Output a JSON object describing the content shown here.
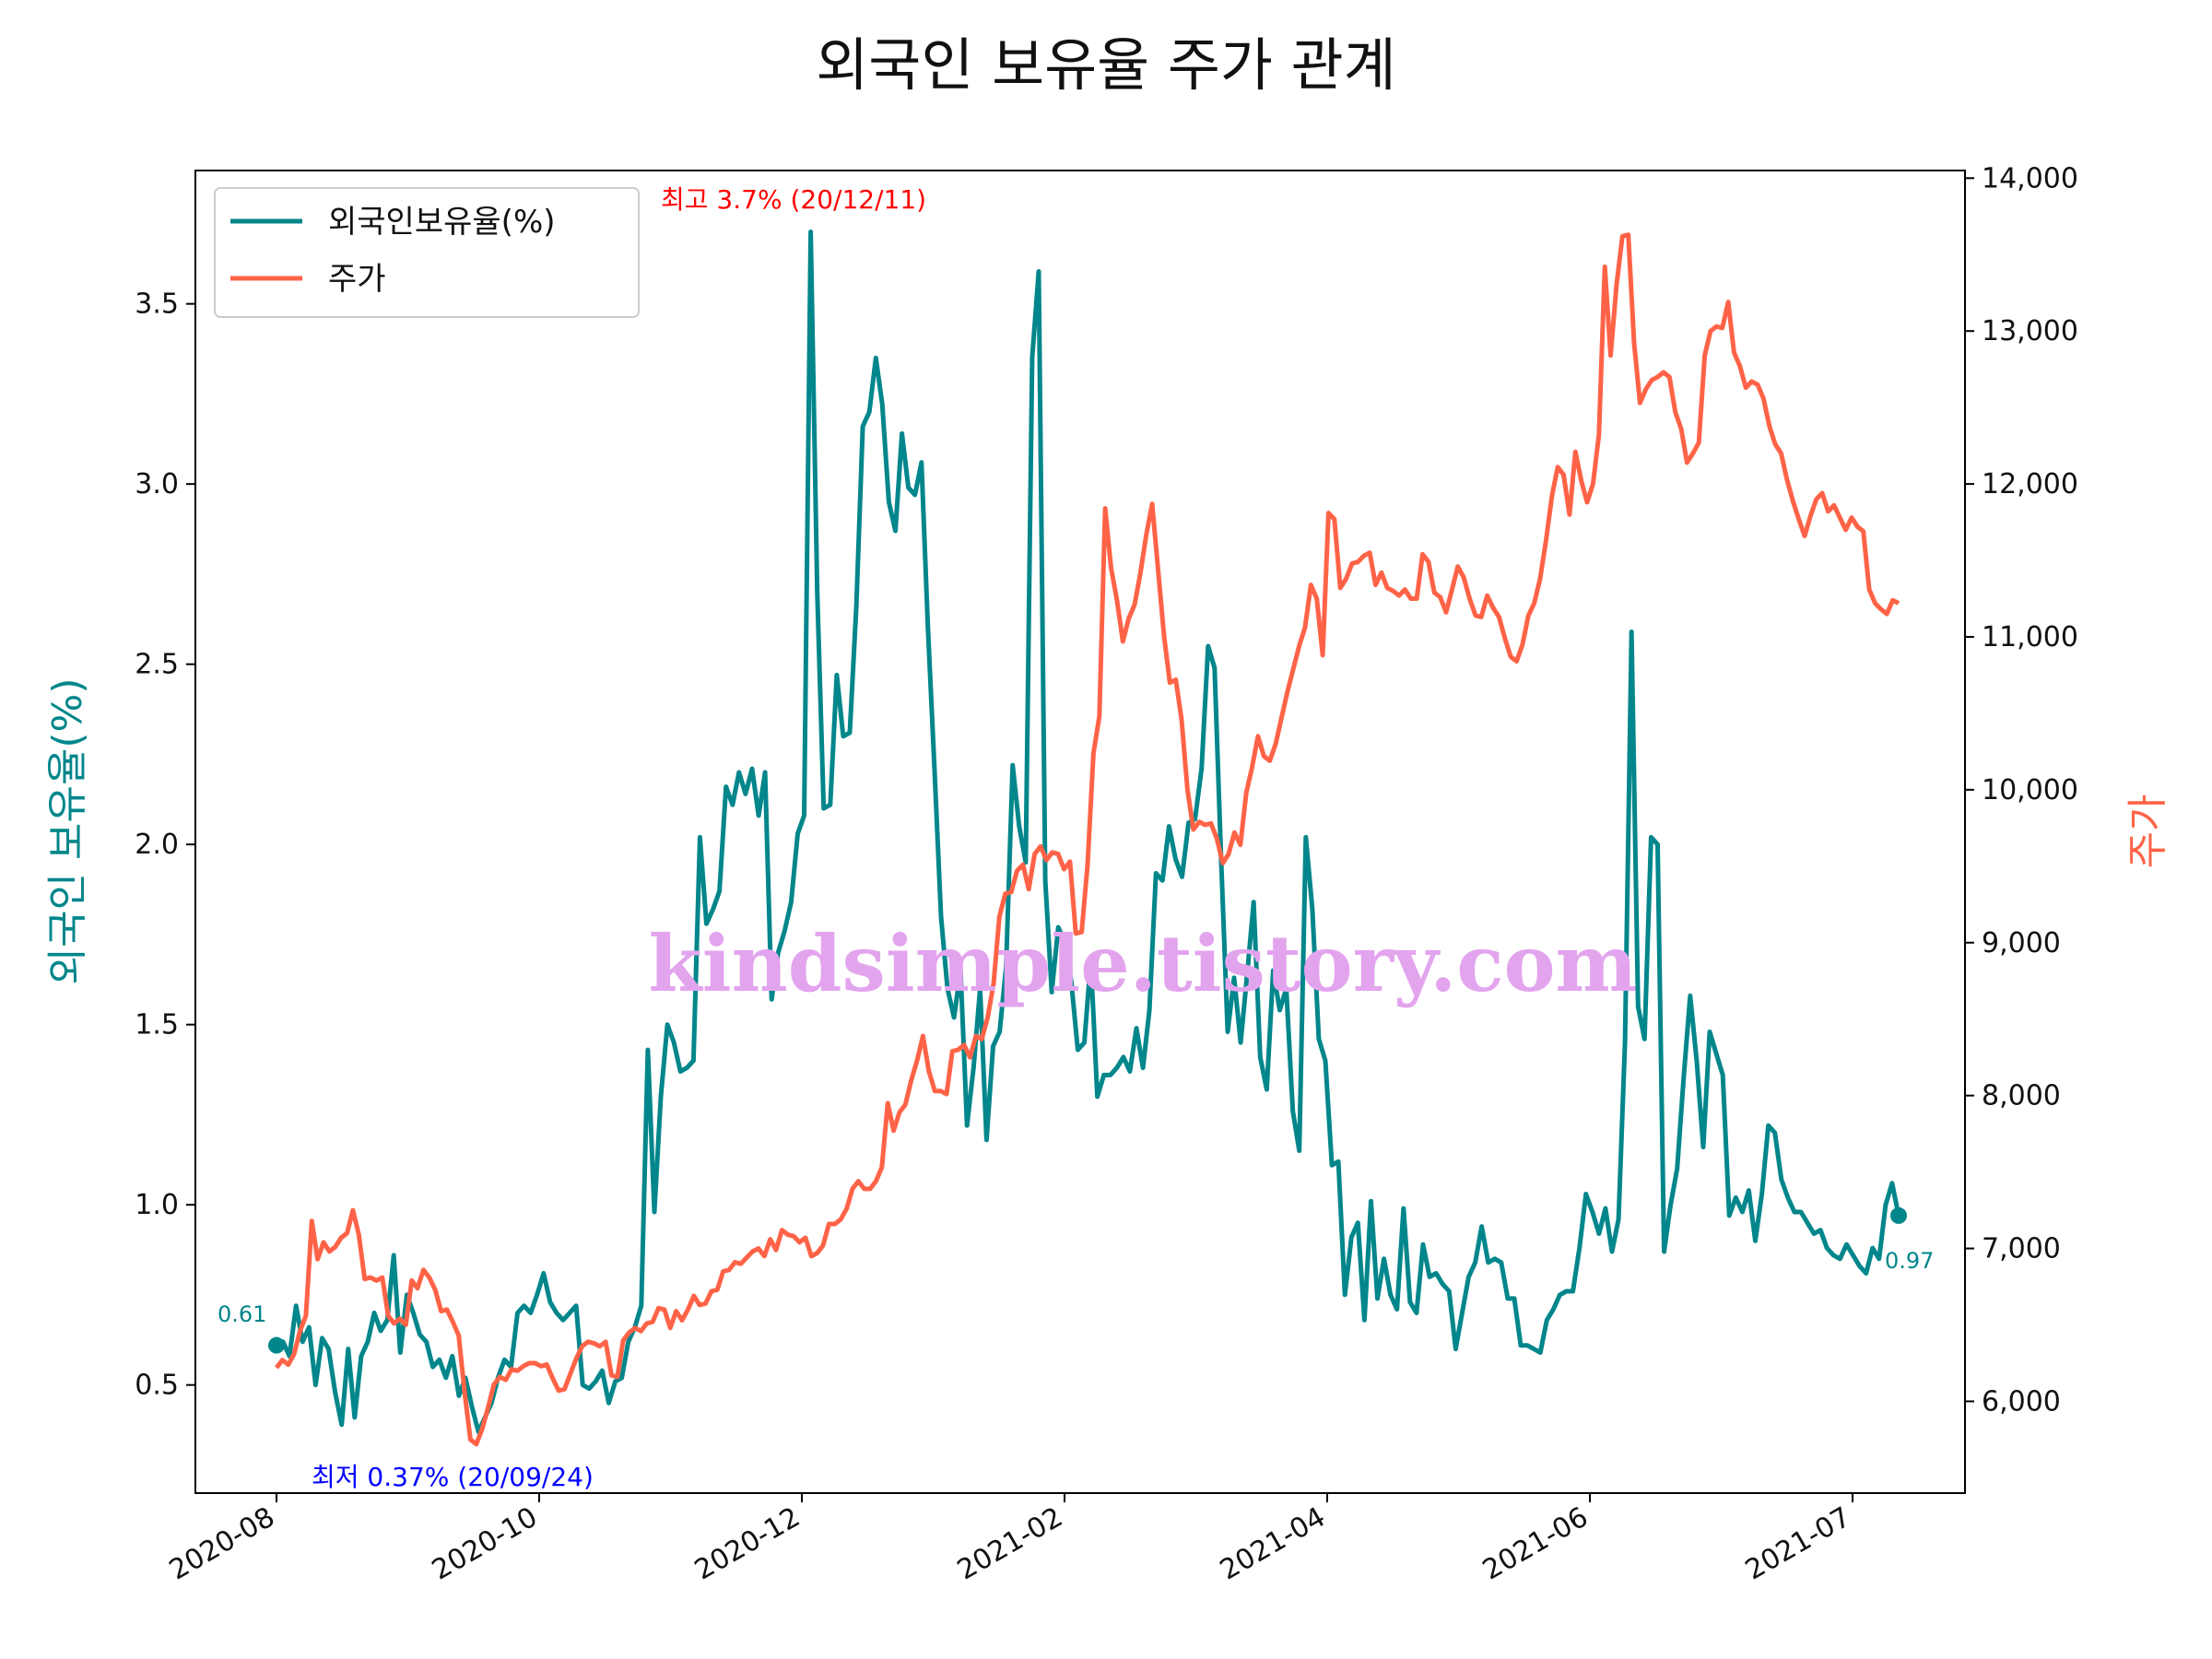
{
  "chart_data": {
    "type": "line",
    "title": "외국인 보유율 주가 관계",
    "ylabel_left": "외국인 보유율(%)",
    "ylabel_right": "주가",
    "xlabel": "",
    "x_ticks": [
      "2020-08",
      "2020-10",
      "2020-12",
      "2021-02",
      "2021-04",
      "2021-06",
      "2021-07"
    ],
    "y_left_range": [
      0.2,
      3.87
    ],
    "y_left_ticks": [
      "0.5",
      "1.0",
      "1.5",
      "2.0",
      "2.5",
      "3.0",
      "3.5"
    ],
    "y_left_tick_values": [
      0.5,
      1.0,
      1.5,
      2.0,
      2.5,
      3.0,
      3.5
    ],
    "y_right_range": [
      5400,
      14050
    ],
    "y_right_ticks": [
      "6,000",
      "7,000",
      "8,000",
      "9,000",
      "10,000",
      "11,000",
      "12,000",
      "13,000",
      "14,000"
    ],
    "y_right_tick_values": [
      6000,
      7000,
      8000,
      9000,
      10000,
      11000,
      12000,
      13000,
      14000
    ],
    "legend": {
      "location": "upper-left",
      "entries": [
        "외국인보유율(%)",
        "주가"
      ]
    },
    "series": [
      {
        "name": "외국인보유율(%)",
        "axis": "left",
        "color": "#00868b",
        "values": [
          0.61,
          0.62,
          0.58,
          0.72,
          0.62,
          0.66,
          0.5,
          0.63,
          0.6,
          0.48,
          0.39,
          0.6,
          0.41,
          0.58,
          0.62,
          0.7,
          0.65,
          0.68,
          0.86,
          0.59,
          0.75,
          0.7,
          0.64,
          0.62,
          0.55,
          0.57,
          0.52,
          0.58,
          0.47,
          0.52,
          0.44,
          0.37,
          0.41,
          0.45,
          0.52,
          0.57,
          0.55,
          0.7,
          0.72,
          0.7,
          0.75,
          0.81,
          0.73,
          0.7,
          0.68,
          0.7,
          0.72,
          0.5,
          0.49,
          0.51,
          0.54,
          0.45,
          0.51,
          0.52,
          0.62,
          0.66,
          0.72,
          1.43,
          0.98,
          1.3,
          1.5,
          1.45,
          1.37,
          1.38,
          1.4,
          2.02,
          1.78,
          1.82,
          1.87,
          2.16,
          2.11,
          2.2,
          2.14,
          2.21,
          2.08,
          2.2,
          1.57,
          1.7,
          1.76,
          1.84,
          2.03,
          2.08,
          3.7,
          2.7,
          2.1,
          2.11,
          2.47,
          2.3,
          2.31,
          2.66,
          3.16,
          3.2,
          3.35,
          3.22,
          2.95,
          2.87,
          3.14,
          2.99,
          2.97,
          3.06,
          2.6,
          2.21,
          1.8,
          1.6,
          1.52,
          1.65,
          1.22,
          1.38,
          1.6,
          1.18,
          1.44,
          1.48,
          1.66,
          2.22,
          2.05,
          1.95,
          3.35,
          3.59,
          1.9,
          1.59,
          1.77,
          1.73,
          1.62,
          1.43,
          1.45,
          1.68,
          1.3,
          1.36,
          1.36,
          1.38,
          1.41,
          1.37,
          1.49,
          1.38,
          1.54,
          1.92,
          1.9,
          2.05,
          1.96,
          1.91,
          2.06,
          2.07,
          2.21,
          2.55,
          2.49,
          1.96,
          1.48,
          1.63,
          1.45,
          1.64,
          1.84,
          1.41,
          1.32,
          1.65,
          1.54,
          1.6,
          1.26,
          1.15,
          2.02,
          1.82,
          1.46,
          1.4,
          1.11,
          1.12,
          0.75,
          0.91,
          0.95,
          0.68,
          1.01,
          0.74,
          0.85,
          0.75,
          0.71,
          0.99,
          0.73,
          0.7,
          0.89,
          0.8,
          0.81,
          0.78,
          0.76,
          0.6,
          0.7,
          0.8,
          0.84,
          0.94,
          0.84,
          0.85,
          0.84,
          0.74,
          0.74,
          0.61,
          0.61,
          0.6,
          0.59,
          0.68,
          0.71,
          0.75,
          0.76,
          0.76,
          0.88,
          1.03,
          0.98,
          0.92,
          0.99,
          0.87,
          0.96,
          1.45,
          2.59,
          1.55,
          1.46,
          2.02,
          2.0,
          0.87,
          1.0,
          1.1,
          1.35,
          1.58,
          1.4,
          1.16,
          1.48,
          1.42,
          1.36,
          0.97,
          1.02,
          0.98,
          1.04,
          0.9,
          1.03,
          1.22,
          1.2,
          1.07,
          1.02,
          0.98,
          0.98,
          0.95,
          0.92,
          0.93,
          0.88,
          0.86,
          0.85,
          0.89,
          0.86,
          0.83,
          0.81,
          0.88,
          0.85,
          1.0,
          1.06,
          0.97
        ]
      },
      {
        "name": "주가",
        "axis": "right",
        "color": "#ff6347",
        "values": [
          6220,
          6270,
          6240,
          6310,
          6460,
          6560,
          7180,
          6930,
          7040,
          6980,
          7010,
          7070,
          7100,
          7250,
          7090,
          6800,
          6810,
          6790,
          6810,
          6560,
          6510,
          6540,
          6500,
          6790,
          6740,
          6860,
          6810,
          6730,
          6590,
          6600,
          6520,
          6430,
          6060,
          5750,
          5720,
          5820,
          5960,
          6110,
          6160,
          6140,
          6210,
          6200,
          6230,
          6250,
          6250,
          6230,
          6240,
          6150,
          6070,
          6080,
          6180,
          6280,
          6360,
          6390,
          6380,
          6360,
          6390,
          6170,
          6160,
          6400,
          6450,
          6480,
          6460,
          6510,
          6520,
          6610,
          6600,
          6480,
          6590,
          6530,
          6600,
          6690,
          6630,
          6640,
          6720,
          6730,
          6850,
          6860,
          6910,
          6900,
          6940,
          6980,
          7000,
          6950,
          7060,
          6990,
          7120,
          7090,
          7080,
          7040,
          7070,
          6950,
          6970,
          7020,
          7160,
          7160,
          7190,
          7260,
          7390,
          7440,
          7390,
          7390,
          7440,
          7530,
          7950,
          7770,
          7890,
          7940,
          8100,
          8230,
          8390,
          8160,
          8030,
          8030,
          8010,
          8290,
          8300,
          8330,
          8250,
          8390,
          8370,
          8510,
          8730,
          9170,
          9320,
          9330,
          9470,
          9510,
          9350,
          9580,
          9630,
          9540,
          9590,
          9580,
          9480,
          9530,
          9060,
          9070,
          9510,
          10240,
          10480,
          11840,
          11450,
          11240,
          10970,
          11120,
          11210,
          11420,
          11670,
          11870,
          11440,
          11010,
          10700,
          10720,
          10460,
          10000,
          9740,
          9790,
          9770,
          9780,
          9680,
          9520,
          9580,
          9720,
          9640,
          9980,
          10150,
          10350,
          10220,
          10190,
          10300,
          10470,
          10640,
          10790,
          10940,
          11060,
          11340,
          11250,
          10880,
          11810,
          11770,
          11320,
          11380,
          11480,
          11490,
          11530,
          11550,
          11340,
          11420,
          11320,
          11300,
          11270,
          11310,
          11250,
          11250,
          11540,
          11490,
          11290,
          11260,
          11160,
          11310,
          11460,
          11390,
          11250,
          11140,
          11130,
          11270,
          11190,
          11130,
          10990,
          10870,
          10840,
          10950,
          11140,
          11220,
          11380,
          11630,
          11920,
          12110,
          12060,
          11800,
          12210,
          12020,
          11880,
          12000,
          12320,
          13420,
          12840,
          13300,
          13620,
          13630,
          12920,
          12530,
          12620,
          12680,
          12700,
          12730,
          12700,
          12470,
          12360,
          12140,
          12200,
          12270,
          12840,
          13000,
          13030,
          13020,
          13190,
          12860,
          12770,
          12630,
          12670,
          12650,
          12560,
          12380,
          12260,
          12200,
          12030,
          11890,
          11770,
          11660,
          11790,
          11900,
          11940,
          11820,
          11860,
          11780,
          11700,
          11780,
          11720,
          11690,
          11310,
          11220,
          11180,
          11150,
          11240,
          11220
        ]
      }
    ],
    "annotations": {
      "max_label": "최고 3.7% (20/12/11)",
      "min_label": "최저 0.37% (20/09/24)",
      "start_label": "0.61",
      "end_label": "0.97",
      "max_color": "#ff0000",
      "min_color": "#0000ff"
    },
    "watermark": "kindsimple.tistory.com"
  }
}
